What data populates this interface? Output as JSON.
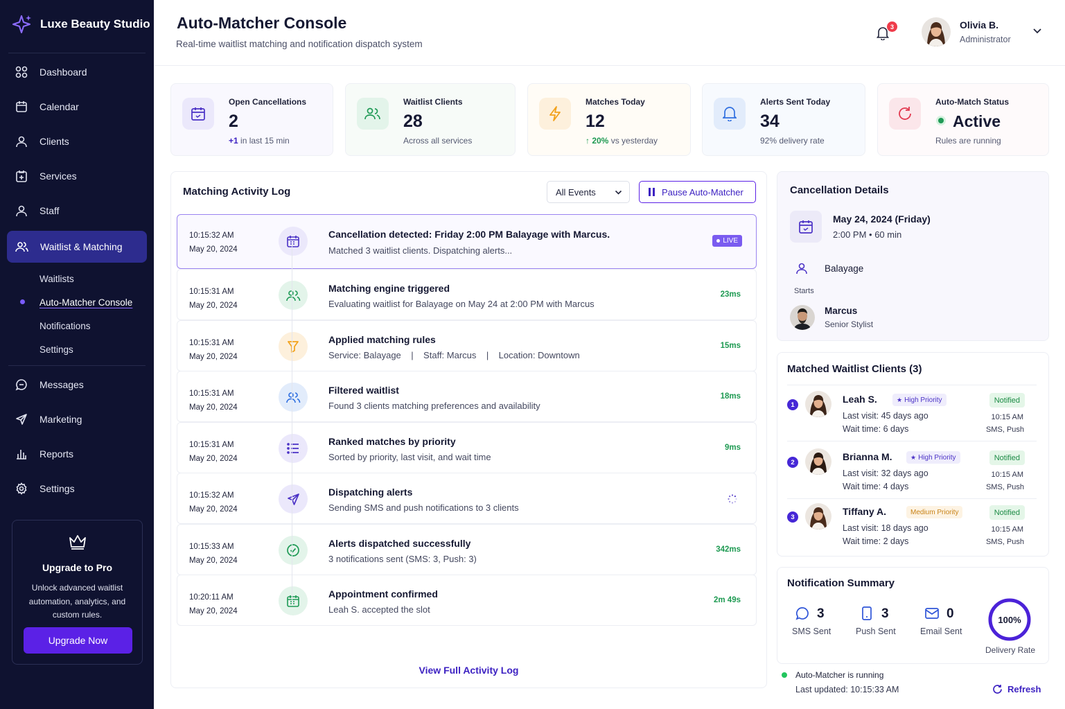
{
  "brand": {
    "name": "Luxe Beauty Studio"
  },
  "nav": [
    {
      "label": "Dashboard",
      "icon": "grid-icon"
    },
    {
      "label": "Calendar",
      "icon": "calendar-icon"
    },
    {
      "label": "Clients",
      "icon": "user-icon"
    },
    {
      "label": "Services",
      "icon": "services-icon"
    },
    {
      "label": "Staff",
      "icon": "staff-icon"
    },
    {
      "label": "Waitlist & Matching",
      "icon": "users-icon"
    }
  ],
  "subnav": [
    "Waitlists",
    "Auto-Matcher Console",
    "Notifications",
    "Settings"
  ],
  "nav2": [
    {
      "label": "Messages",
      "icon": "chat-icon"
    },
    {
      "label": "Marketing",
      "icon": "send-icon"
    },
    {
      "label": "Reports",
      "icon": "chart-icon"
    },
    {
      "label": "Settings",
      "icon": "gear-icon"
    }
  ],
  "upgrade": {
    "title": "Upgrade to Pro",
    "desc": "Unlock advanced waitlist automation, analytics, and custom rules.",
    "button": "Upgrade Now"
  },
  "header": {
    "title": "Auto-Matcher Console",
    "subtitle": "Real-time waitlist matching and notification dispatch system",
    "notifications": "3",
    "user_name": "Olivia B.",
    "user_role": "Administrator"
  },
  "stats": [
    {
      "label": "Open Cancellations",
      "value": "2",
      "sub_bold": "+1",
      "sub": " in last 15 min",
      "icon": "calendar-icon",
      "color": "#4b32c6",
      "bg": "#ebe8fb"
    },
    {
      "label": "Waitlist Clients",
      "value": "28",
      "sub_bold": "",
      "sub": "Across all services",
      "icon": "users-icon",
      "color": "#1f9a56",
      "bg": "#e3f4ea"
    },
    {
      "label": "Matches Today",
      "value": "12",
      "sub_bold": "↑ 20%",
      "sub": " vs yesterday",
      "icon": "bolt-icon",
      "color": "#f2a21c",
      "bg": "#fdf0dc"
    },
    {
      "label": "Alerts Sent Today",
      "value": "34",
      "sub_bold": "",
      "sub": "92% delivery rate",
      "icon": "bell-icon",
      "color": "#2f6fe0",
      "bg": "#e2ecfb"
    },
    {
      "label": "Auto-Match Status",
      "value": "Active",
      "sub_bold": "",
      "sub": "Rules are running",
      "icon": "refresh-icon",
      "color": "#e23a50",
      "bg": "#fbe6ea"
    }
  ],
  "log": {
    "title": "Matching Activity Log",
    "filter": "All Events",
    "pause": "Pause Auto-Matcher",
    "live": "LIVE",
    "view_all": "View Full Activity Log",
    "rows": [
      {
        "time": "10:15:32 AM",
        "date": "May 20, 2024",
        "title": "Cancellation detected: Friday 2:00 PM Balayage with Marcus.",
        "desc": "Matched 3 waitlist clients. Dispatching alerts...",
        "dur": "",
        "icon": "calendar-icon",
        "color": "#4b32c6",
        "bg": "#ebe8fb"
      },
      {
        "time": "10:15:31 AM",
        "date": "May 20, 2024",
        "title": "Matching engine triggered",
        "desc": "Evaluating waitlist for Balayage on May 24 at 2:00 PM with Marcus",
        "dur": "23ms",
        "icon": "users-icon",
        "color": "#1f9a56",
        "bg": "#e3f4ea"
      },
      {
        "time": "10:15:31 AM",
        "date": "May 20, 2024",
        "title": "Applied matching rules",
        "desc": "Service: Balayage    |    Staff: Marcus    |    Location: Downtown",
        "dur": "15ms",
        "icon": "filter-icon",
        "color": "#f2a21c",
        "bg": "#fdf0dc"
      },
      {
        "time": "10:15:31 AM",
        "date": "May 20, 2024",
        "title": "Filtered waitlist",
        "desc": "Found 3 clients matching preferences and availability",
        "dur": "18ms",
        "icon": "users-icon",
        "color": "#2f6fe0",
        "bg": "#e2ecfb"
      },
      {
        "time": "10:15:31 AM",
        "date": "May 20, 2024",
        "title": "Ranked matches by priority",
        "desc": "Sorted by priority, last visit, and wait time",
        "dur": "9ms",
        "icon": "list-icon",
        "color": "#4b32c6",
        "bg": "#ebe8fb"
      },
      {
        "time": "10:15:32 AM",
        "date": "May 20, 2024",
        "title": "Dispatching alerts",
        "desc": "Sending SMS and push notifications to 3 clients",
        "dur": "",
        "icon": "send-icon",
        "color": "#4b32c6",
        "bg": "#ebe8fb"
      },
      {
        "time": "10:15:33 AM",
        "date": "May 20, 2024",
        "title": "Alerts dispatched successfully",
        "desc": "3 notifications sent (SMS: 3, Push: 3)",
        "dur": "342ms",
        "icon": "check-icon",
        "color": "#1f9a56",
        "bg": "#e3f4ea"
      },
      {
        "time": "10:20:11 AM",
        "date": "May 20, 2024",
        "title": "Appointment confirmed",
        "desc": "Leah S. accepted the slot",
        "dur": "2m 49s",
        "icon": "calendar-check-icon",
        "color": "#1f9a56",
        "bg": "#e3f4ea"
      }
    ]
  },
  "cancellation": {
    "title": "Cancellation Details",
    "date": "May 24, 2024 (Friday)",
    "time": "2:00 PM • 60 min",
    "service": "Balayage",
    "staff_label": "Starts",
    "staff": "Marcus",
    "staff_role": "Senior Stylist"
  },
  "matched": {
    "title": "Matched Waitlist Clients (3)",
    "clients": [
      {
        "num": "1",
        "name": "Leah S.",
        "priority": "High Priority",
        "level": "high",
        "last": "Last visit: 45 days ago",
        "wait": "Wait time: 6 days",
        "status": "Notified",
        "time": "10:15 AM",
        "channels": "SMS, Push"
      },
      {
        "num": "2",
        "name": "Brianna M.",
        "priority": "High Priority",
        "level": "high",
        "last": "Last visit: 32 days ago",
        "wait": "Wait time: 4 days",
        "status": "Notified",
        "time": "10:15 AM",
        "channels": "SMS, Push"
      },
      {
        "num": "3",
        "name": "Tiffany A.",
        "priority": "Medium Priority",
        "level": "med",
        "last": "Last visit: 18 days ago",
        "wait": "Wait time: 2 days",
        "status": "Notified",
        "time": "10:15 AM",
        "channels": "SMS, Push"
      }
    ]
  },
  "summary": {
    "title": "Notification Summary",
    "sms": "3",
    "sms_label": "SMS Sent",
    "push": "3",
    "push_label": "Push Sent",
    "email": "0",
    "email_label": "Email Sent",
    "rate": "100%",
    "rate_value": 1.0,
    "rate_label": "Delivery Rate"
  },
  "footer": {
    "running": "Auto-Matcher is running",
    "updated": "Last updated: 10:15:33 AM",
    "refresh": "Refresh"
  }
}
